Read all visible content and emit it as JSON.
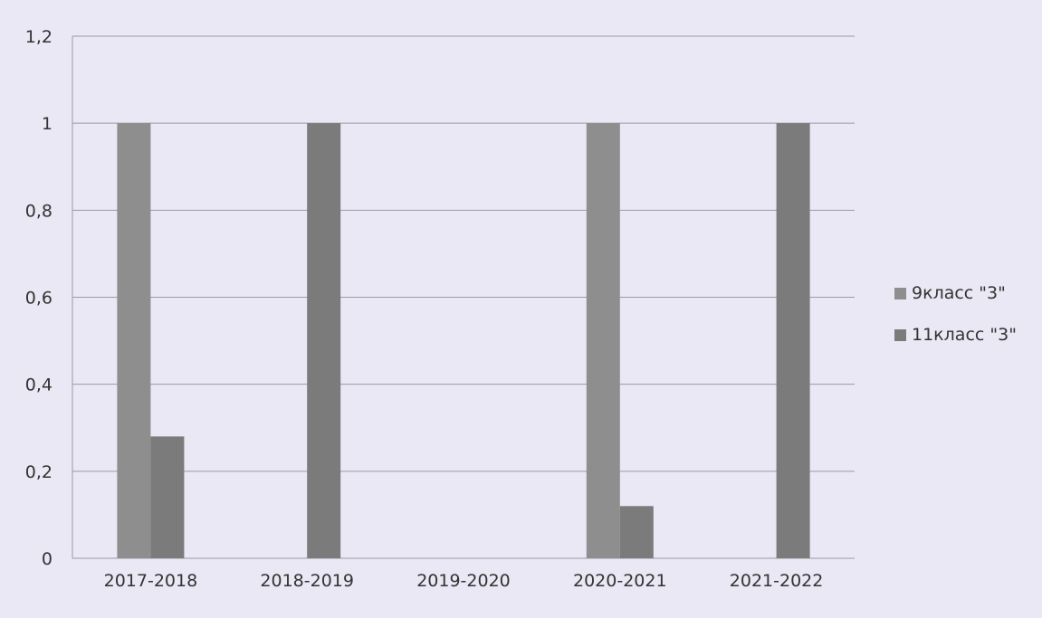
{
  "chart_data": {
    "type": "bar",
    "categories": [
      "2017-2018",
      "2018-2019",
      "2019-2020",
      "2020-2021",
      "2021-2022"
    ],
    "series": [
      {
        "name": "9класс \"3\"",
        "values": [
          1,
          0,
          0,
          1,
          0
        ],
        "color": "#8e8e8e"
      },
      {
        "name": "11класс \"3\"",
        "values": [
          0.28,
          1,
          0,
          0.12,
          1
        ],
        "color": "#7b7b7b"
      }
    ],
    "yticks": [
      "0",
      "0,2",
      "0,4",
      "0,6",
      "0,8",
      "1",
      "1,2"
    ],
    "ylim": [
      0,
      1.2
    ],
    "grid": true,
    "legend_position": "right",
    "title": "",
    "xlabel": "",
    "ylabel": ""
  }
}
